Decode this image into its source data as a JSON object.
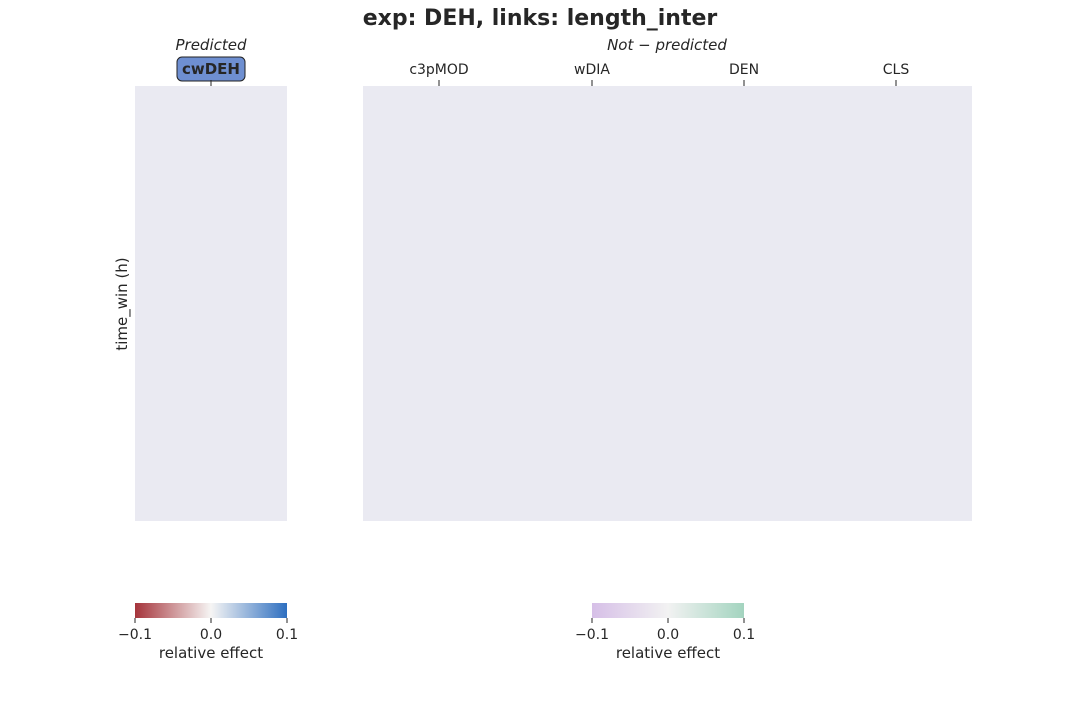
{
  "chart_data": {
    "type": "heatmap",
    "title": "exp: DEH, links: length_inter",
    "ylabel": "time_win (h)",
    "panels": [
      {
        "heading": "Predicted",
        "columns": [
          "cwDEH"
        ],
        "highlighted_column": "cwDEH",
        "highlight_color": "#6e8fd1",
        "cell_color": "#eaeaf2",
        "values": [],
        "colorbar": {
          "label": "relative effect",
          "range": [
            -0.1,
            0.1
          ],
          "ticks": [
            "−0.1",
            "0.0",
            "0.1"
          ],
          "colors": [
            "#a5343b",
            "#f6f5f4",
            "#2e6fc0"
          ]
        }
      },
      {
        "heading": "Not − predicted",
        "columns": [
          "c3pMOD",
          "wDIA",
          "DEN",
          "CLS"
        ],
        "cell_color": "#eaeaf2",
        "values": [],
        "colorbar": {
          "label": "relative effect",
          "range": [
            -0.1,
            0.1
          ],
          "ticks": [
            "−0.1",
            "0.0",
            "0.1"
          ],
          "colors": [
            "#d6bfe7",
            "#f2f2f2",
            "#a3d4bf"
          ]
        }
      }
    ]
  }
}
